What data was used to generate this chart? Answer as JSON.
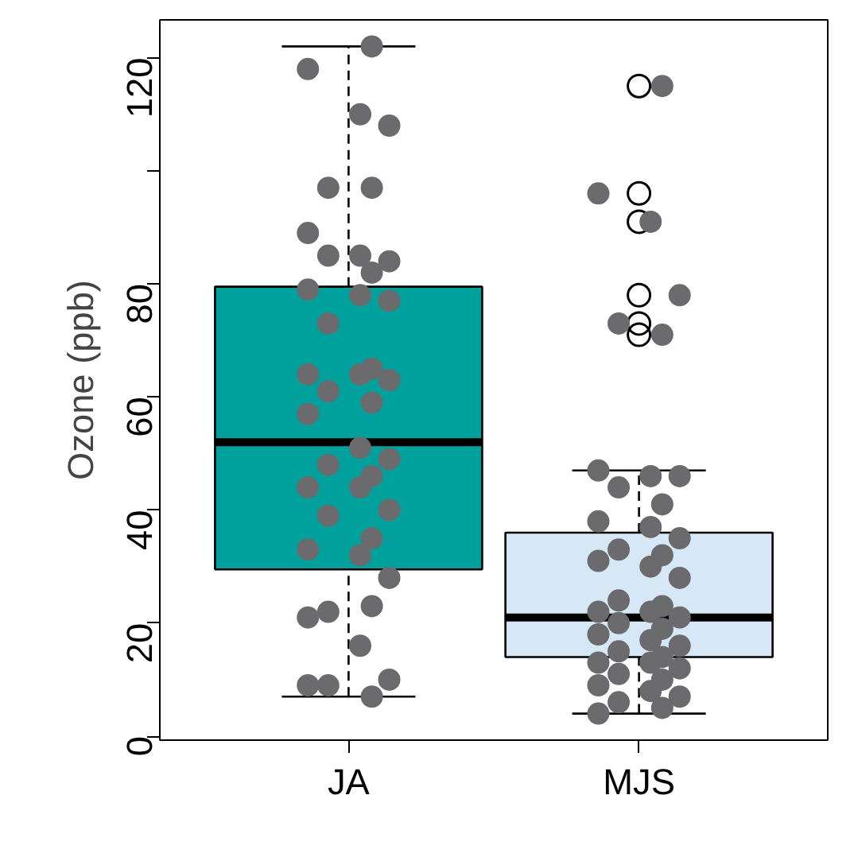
{
  "chart_data": {
    "type": "box",
    "ylabel": "Ozone (ppb)",
    "categories": [
      "JA",
      "MJS"
    ],
    "colors": [
      "#00a19c",
      "#d6e8f5"
    ],
    "boxes": [
      {
        "low": 7,
        "q1": 29.5,
        "median": 52,
        "q3": 79.5,
        "high": 122
      },
      {
        "low": 4,
        "q1": 14,
        "median": 21,
        "q3": 36,
        "high": 47,
        "outliers": [
          115,
          96,
          91,
          78,
          73,
          71
        ]
      }
    ],
    "series": [
      {
        "type": "scatter",
        "color": "#6b6b6e",
        "x": [
          "JA",
          "JA",
          "JA",
          "JA",
          "JA",
          "JA",
          "JA",
          "JA",
          "JA",
          "JA",
          "JA",
          "JA",
          "JA",
          "JA",
          "JA",
          "JA",
          "JA",
          "JA",
          "JA",
          "JA",
          "JA",
          "JA",
          "JA",
          "JA",
          "JA",
          "JA",
          "JA",
          "JA",
          "JA",
          "JA",
          "JA",
          "JA",
          "JA",
          "JA",
          "JA",
          "JA",
          "JA",
          "JA",
          "JA",
          "JA",
          "JA",
          "JA"
        ],
        "values": [
          122,
          118,
          110,
          108,
          97,
          97,
          89,
          85,
          84,
          85,
          82,
          79,
          78,
          77,
          73,
          65,
          64,
          64,
          63,
          61,
          59,
          57,
          51,
          49,
          48,
          46,
          44,
          44,
          40,
          39,
          35,
          33,
          32,
          28,
          22,
          23,
          21,
          16,
          10,
          9,
          7,
          9
        ]
      },
      {
        "type": "scatter",
        "color": "#6b6b6e",
        "x": [
          "MJS",
          "MJS",
          "MJS",
          "MJS",
          "MJS",
          "MJS",
          "MJS",
          "MJS",
          "MJS",
          "MJS",
          "MJS",
          "MJS",
          "MJS",
          "MJS",
          "MJS",
          "MJS",
          "MJS",
          "MJS",
          "MJS",
          "MJS",
          "MJS",
          "MJS",
          "MJS",
          "MJS",
          "MJS",
          "MJS",
          "MJS",
          "MJS",
          "MJS",
          "MJS",
          "MJS",
          "MJS",
          "MJS",
          "MJS",
          "MJS",
          "MJS",
          "MJS",
          "MJS",
          "MJS",
          "MJS",
          "MJS",
          "MJS"
        ],
        "values": [
          115,
          96,
          91,
          78,
          73,
          71,
          47,
          46,
          46,
          44,
          41,
          38,
          37,
          35,
          33,
          32,
          31,
          30,
          28,
          24,
          23,
          22,
          22,
          21,
          20,
          19,
          18,
          17,
          16,
          15,
          14,
          13,
          13,
          12,
          11,
          10,
          9,
          8,
          7,
          6,
          5,
          4
        ]
      }
    ],
    "ylim": [
      -0.7,
      126.7
    ],
    "yticks": [
      0,
      20,
      40,
      60,
      80,
      {
        "value": 100,
        "label": null
      },
      120
    ],
    "line_style": "dashed",
    "marker": "circle",
    "grid": false
  }
}
